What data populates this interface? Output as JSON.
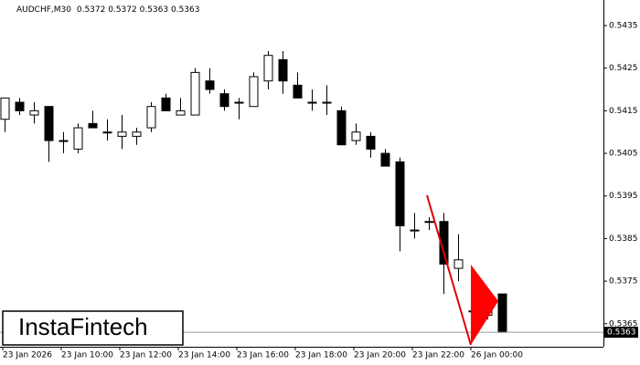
{
  "chart_data": {
    "type": "candlestick",
    "symbol": "AUDCHF,M30",
    "header_values": [
      0.5372,
      0.5372,
      0.5363,
      0.5363
    ],
    "watermark": "InstaFintech",
    "categories": [
      "23 Jan 2026",
      null,
      null,
      null,
      "23 Jan 10:00",
      null,
      null,
      null,
      "23 Jan 12:00",
      null,
      null,
      null,
      "23 Jan 14:00",
      null,
      null,
      null,
      "23 Jan 16:00",
      null,
      null,
      null,
      "23 Jan 18:00",
      null,
      null,
      null,
      "23 Jan 20:00",
      null,
      null,
      null,
      "23 Jan 22:00",
      null,
      null,
      null,
      "26 Jan 00:00",
      null,
      null
    ],
    "open": [
      0.5413,
      0.5417,
      0.5414,
      0.5416,
      0.5408,
      0.5406,
      0.5412,
      0.541,
      0.5409,
      0.5409,
      0.5411,
      0.5418,
      0.5414,
      0.5414,
      0.5422,
      0.5419,
      0.5417,
      0.5416,
      0.5422,
      0.5427,
      0.5421,
      0.5417,
      0.5417,
      0.5415,
      0.5408,
      0.5409,
      0.5405,
      0.5403,
      0.5387,
      0.5389,
      0.5389,
      0.5378,
      0.5368,
      0.5367,
      0.5372
    ],
    "high": [
      0.5418,
      0.5418,
      0.5417,
      0.5416,
      0.541,
      0.5412,
      0.5415,
      0.5413,
      0.5414,
      0.5411,
      0.5417,
      0.5419,
      0.5418,
      0.5425,
      0.5425,
      0.542,
      0.5418,
      0.5424,
      0.5429,
      0.5429,
      0.5424,
      0.542,
      0.5421,
      0.5416,
      0.5412,
      0.541,
      0.5406,
      0.5404,
      0.5391,
      0.539,
      0.5391,
      0.5386,
      0.5369,
      0.5373,
      0.5372
    ],
    "low": [
      0.541,
      0.5414,
      0.5412,
      0.5403,
      0.5405,
      0.5405,
      0.5411,
      0.5408,
      0.5406,
      0.5407,
      0.541,
      0.5415,
      0.5414,
      0.5414,
      0.5419,
      0.5415,
      0.5413,
      0.5416,
      0.542,
      0.5419,
      0.5418,
      0.5415,
      0.5414,
      0.5407,
      0.5407,
      0.5404,
      0.5402,
      0.5382,
      0.5385,
      0.5387,
      0.5372,
      0.5375,
      0.5367,
      0.5366,
      0.5363
    ],
    "close": [
      0.5418,
      0.5415,
      0.5415,
      0.5408,
      0.5408,
      0.5411,
      0.5411,
      0.541,
      0.541,
      0.541,
      0.5416,
      0.5415,
      0.5415,
      0.5424,
      0.542,
      0.5416,
      0.5417,
      0.5423,
      0.5428,
      0.5422,
      0.5418,
      0.5417,
      0.5417,
      0.5407,
      0.541,
      0.5406,
      0.5402,
      0.5388,
      0.5387,
      0.5389,
      0.5379,
      0.538,
      0.5368,
      0.5372,
      0.5363
    ],
    "up_color": "#ffffff",
    "down_color": "#000000",
    "last_price": 0.5363,
    "ylim": [
      0.53596,
      0.5441
    ],
    "yticks": [
      0.5365,
      0.5375,
      0.5385,
      0.5395,
      0.5405,
      0.5415,
      0.5425,
      0.5435
    ],
    "grid": false
  }
}
